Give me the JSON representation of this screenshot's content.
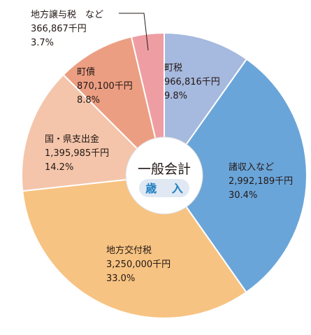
{
  "chart_data": {
    "type": "pie",
    "title": "",
    "center_label": {
      "title": "一般会計",
      "subtitle": "歳 入"
    },
    "unit": "千円",
    "start_angle_deg": 0,
    "direction": "clockwise",
    "slices": [
      {
        "name": "町税",
        "amount": "966,816千円",
        "value": 9.8,
        "percent": "9.8%",
        "color": "#a6b9de"
      },
      {
        "name": "諸収入など",
        "amount": "2,992,189千円",
        "value": 30.4,
        "percent": "30.4%",
        "color": "#6aa5d9"
      },
      {
        "name": "地方交付税",
        "amount": "3,250,000千円",
        "value": 33.0,
        "percent": "33.0%",
        "color": "#f7c382"
      },
      {
        "name": "国・県支出金",
        "amount": "1,395,985千円",
        "value": 14.2,
        "percent": "14.2%",
        "color": "#f4c5ab"
      },
      {
        "name": "町債",
        "amount": "870,100千円",
        "value": 8.8,
        "percent": "8.8%",
        "color": "#ec9e82"
      },
      {
        "name": "地方譲与税　など",
        "amount": "366,867千円",
        "value": 3.7,
        "percent": "3.7%",
        "color": "#ee9ea3"
      }
    ]
  }
}
